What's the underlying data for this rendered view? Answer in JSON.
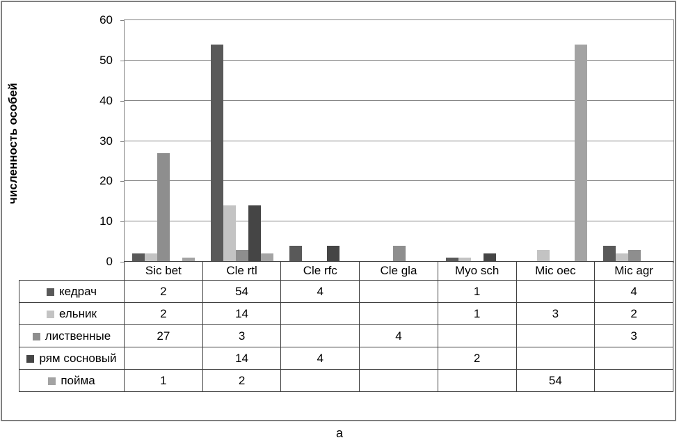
{
  "caption": "а",
  "chart_data": {
    "type": "bar",
    "title": "",
    "ylabel": "численность особей",
    "xlabel": "",
    "ylim": [
      0,
      60
    ],
    "ytick_step": 10,
    "yticks": [
      0,
      10,
      20,
      30,
      40,
      50,
      60
    ],
    "grid": true,
    "legend_position": "table-rows-left",
    "categories": [
      "Sic bet",
      "Cle rtl",
      "Cle rfc",
      "Cle gla",
      "Myo sch",
      "Mic oec",
      "Mic agr"
    ],
    "series": [
      {
        "name": "кедрач",
        "color": "#595959",
        "values": [
          2,
          54,
          4,
          null,
          1,
          null,
          4
        ]
      },
      {
        "name": "ельник",
        "color": "#c3c3c3",
        "values": [
          2,
          14,
          null,
          null,
          1,
          3,
          2
        ]
      },
      {
        "name": "лиственные",
        "color": "#8e8e8e",
        "values": [
          27,
          3,
          null,
          4,
          null,
          null,
          3
        ]
      },
      {
        "name": "рям сосновый",
        "color": "#454545",
        "values": [
          null,
          14,
          4,
          null,
          2,
          null,
          null
        ]
      },
      {
        "name": "пойма",
        "color": "#a3a3a3",
        "values": [
          1,
          2,
          null,
          null,
          null,
          54,
          null
        ]
      }
    ],
    "colors": {
      "axis": "#808080",
      "gridline": "#808080",
      "table_border": "#3f3f3f",
      "text": "#000000"
    }
  }
}
